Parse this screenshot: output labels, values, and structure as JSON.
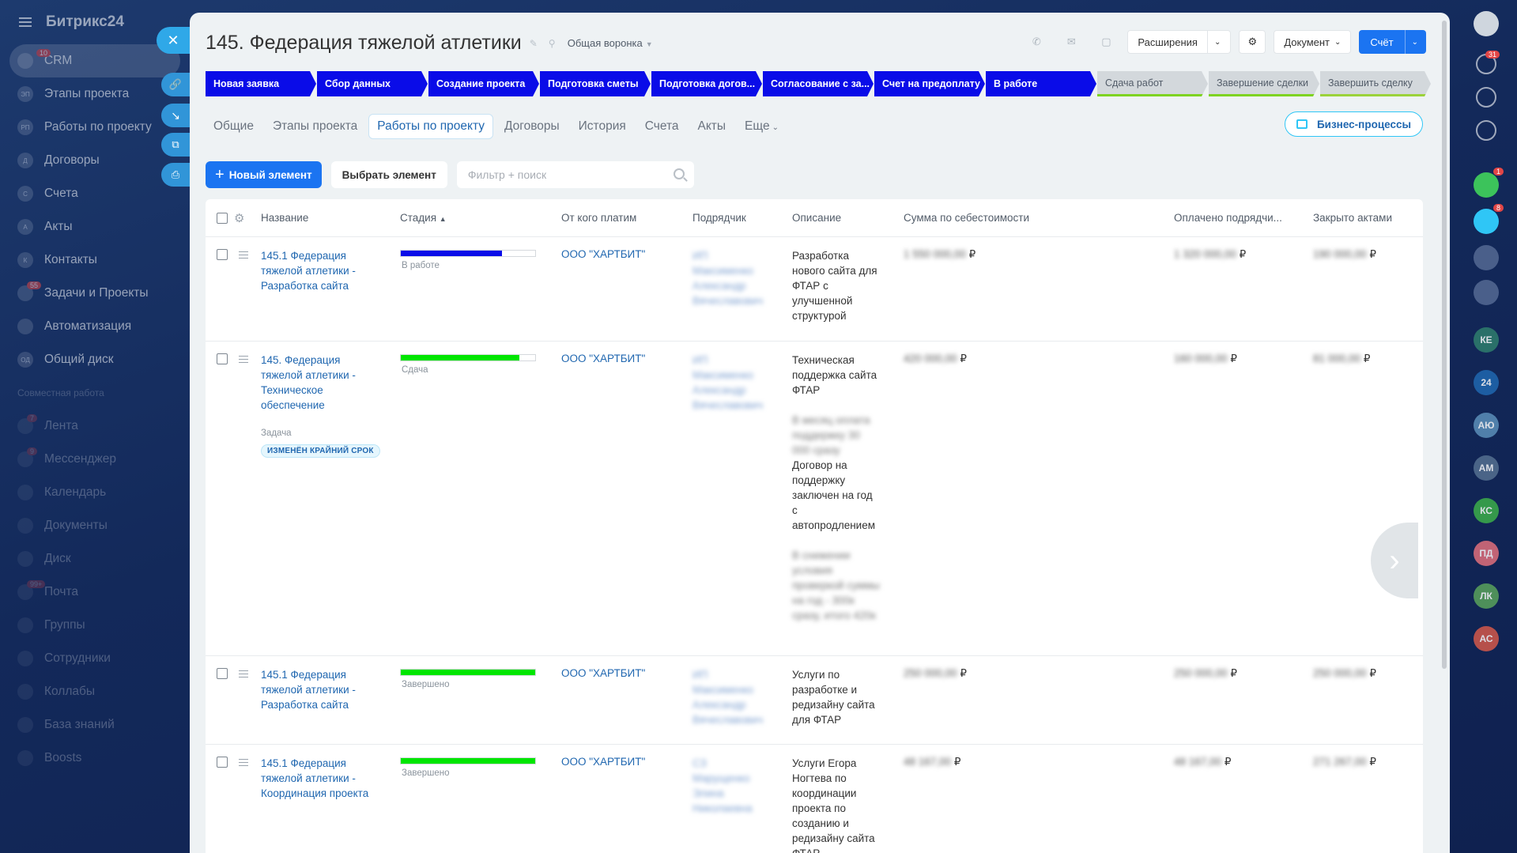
{
  "app": {
    "brand": "Битрикс24"
  },
  "sidebar": {
    "items": [
      {
        "label": "CRM",
        "abbr": "",
        "badge": "10",
        "active": true
      },
      {
        "label": "Этапы проекта",
        "abbr": "ЭП",
        "badge": ""
      },
      {
        "label": "Работы по проекту",
        "abbr": "РП",
        "badge": ""
      },
      {
        "label": "Договоры",
        "abbr": "Д",
        "badge": ""
      },
      {
        "label": "Счета",
        "abbr": "С",
        "badge": ""
      },
      {
        "label": "Акты",
        "abbr": "А",
        "badge": ""
      },
      {
        "label": "Контакты",
        "abbr": "К",
        "badge": ""
      },
      {
        "label": "Задачи и Проекты",
        "abbr": "",
        "badge": "55"
      },
      {
        "label": "Автоматизация",
        "abbr": "",
        "badge": ""
      },
      {
        "label": "Общий диск",
        "abbr": "ОД",
        "badge": ""
      }
    ],
    "section_label": "Совместная работа",
    "collab_items": [
      {
        "label": "Лента",
        "badge": "7"
      },
      {
        "label": "Мессенджер",
        "badge": "9"
      },
      {
        "label": "Календарь",
        "badge": ""
      },
      {
        "label": "Документы",
        "badge": ""
      },
      {
        "label": "Диск",
        "badge": ""
      },
      {
        "label": "Почта",
        "badge": "99+"
      },
      {
        "label": "Группы",
        "badge": ""
      },
      {
        "label": "Сотрудники",
        "badge": ""
      },
      {
        "label": "Коллабы",
        "badge": ""
      },
      {
        "label": "База знаний",
        "badge": ""
      },
      {
        "label": "Boosts",
        "badge": ""
      }
    ]
  },
  "header": {
    "title": "145. Федерация тяжелой атлетики",
    "funnel": "Общая воронка",
    "extensions": "Расширения",
    "document": "Документ",
    "invoice": "Счёт"
  },
  "stages": [
    {
      "label": "Новая заявка",
      "done": true
    },
    {
      "label": "Сбор данных",
      "done": true
    },
    {
      "label": "Создание проекта",
      "done": true
    },
    {
      "label": "Подготовка сметы",
      "done": true
    },
    {
      "label": "Подготовка догов...",
      "done": true
    },
    {
      "label": "Согласование с за...",
      "done": true
    },
    {
      "label": "Счет на предоплату",
      "done": true
    },
    {
      "label": "В работе",
      "done": true
    },
    {
      "label": "Сдача работ",
      "done": false
    },
    {
      "label": "Завершение сделки",
      "done": false
    },
    {
      "label": "Завершить сделку",
      "done": false
    }
  ],
  "tabs": [
    "Общие",
    "Этапы проекта",
    "Работы по проекту",
    "Договоры",
    "История",
    "Счета",
    "Акты",
    "Еще"
  ],
  "active_tab": "Работы по проекту",
  "business_processes": "Бизнес-процессы",
  "toolbar": {
    "new_element": "Новый элемент",
    "select_element": "Выбрать элемент",
    "search_placeholder": "Фильтр + поиск"
  },
  "grid": {
    "columns": [
      "Название",
      "Стадия",
      "От кого платим",
      "Подрядчик",
      "Описание",
      "Сумма по себестоимости",
      "Оплачено подрядчи...",
      "Закрыто актами"
    ],
    "rows": [
      {
        "name": "145.1 Федерация тяжелой атлетики - Разработка сайта",
        "stage": "В работе",
        "stage_progress": 0.75,
        "stage_color": "#0a0ce8",
        "payer": "ООО \"ХАРТБИТ\"",
        "contractor": "ИП Максименко Александр Вячеславович",
        "description": "Разработка нового сайта для ФТАР с улучшенной структурой",
        "description_extra": "",
        "cost": "1 550 000,00",
        "paid": "1 320 000,00",
        "closed": "190 000,00",
        "currency": "₽"
      },
      {
        "name": "145. Федерация тяжелой атлетики - Техническое обеспечение",
        "stage": "Сдача",
        "stage_progress": 0.88,
        "stage_color": "#00e600",
        "payer": "ООО \"ХАРТБИТ\"",
        "contractor": "ИП Максименко Александр Вячеславович",
        "description": "Техническая поддержка сайта ФТАР",
        "description_extra": "",
        "task": "Задача",
        "task_tag": "ИЗМЕНЁН КРАЙНИЙ СРОК",
        "cost": "420 000,00",
        "paid": "160 000,00",
        "closed": "81 000,00",
        "currency": "₽"
      },
      {
        "name": "145.1 Федерация тяжелой атлетики - Разработка сайта",
        "stage": "Завершено",
        "stage_progress": 1,
        "stage_color": "#00e600",
        "payer": "ООО \"ХАРТБИТ\"",
        "contractor": "ИП Максименко Александр Вячеславович",
        "description": "Услуги по разработке и редизайну сайта для ФТАР",
        "description_extra": "",
        "cost": "250 000,00",
        "paid": "250 000,00",
        "closed": "250 000,00",
        "currency": "₽"
      },
      {
        "name": "145.1 Федерация тяжелой атлетики - Координация проекта",
        "stage": "Завершено",
        "stage_progress": 1,
        "stage_color": "#00e600",
        "payer": "ООО \"ХАРТБИТ\"",
        "contractor": "СЗ Марущенко Элина Николаевна",
        "description": "Услуги Егора Ногтева по координации проекта по созданию и редизайну сайта ФТАР",
        "description_extra": "",
        "cost": "48 167,00",
        "paid": "48 167,00",
        "closed": "271 267,00",
        "currency": "₽"
      }
    ],
    "row2_desc_blur": [
      "В месяц оплата поддержку 30 000 сразу",
      "В снижении условия проверкой суммы на год - 300к сразу, итого 420к"
    ],
    "row2_desc_mid": "Договор на поддержку заключен на год с автопродлением"
  },
  "rail": {
    "avatars": [
      "КЕ",
      "24",
      "АЮ",
      "АМ",
      "КС",
      "ПД",
      "ЛК",
      "АС"
    ],
    "badges": {
      "notifications": "31",
      "chat1": "1",
      "chat2": "8"
    }
  }
}
